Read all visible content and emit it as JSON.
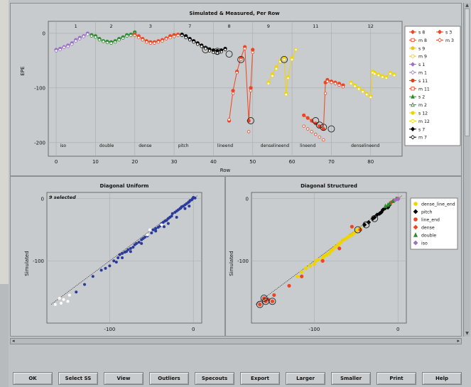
{
  "buttons": [
    "OK",
    "Select SS",
    "View",
    "Outliers",
    "Specouts",
    "Export",
    "Larger",
    "Smaller",
    "Print",
    "Help"
  ],
  "chart_data": [
    {
      "type": "line",
      "title": "Simulated & Measured, Per Row",
      "xlabel": "Row",
      "ylabel": "EPE",
      "xlim": [
        -2,
        88
      ],
      "ylim": [
        -225,
        22
      ],
      "xticks": [
        0,
        10,
        20,
        30,
        40,
        50,
        60,
        70,
        80
      ],
      "yticks": [
        0,
        -100,
        -200
      ],
      "top_labels": [
        {
          "x": 5,
          "text": "1"
        },
        {
          "x": 14,
          "text": "2"
        },
        {
          "x": 24,
          "text": "3"
        },
        {
          "x": 34,
          "text": "7"
        },
        {
          "x": 44,
          "text": "8"
        },
        {
          "x": 54,
          "text": "9"
        },
        {
          "x": 66,
          "text": "11"
        },
        {
          "x": 80,
          "text": "12"
        }
      ],
      "bottom_labels": [
        {
          "x": 1,
          "text": "iso"
        },
        {
          "x": 11,
          "text": "double"
        },
        {
          "x": 21,
          "text": "dense"
        },
        {
          "x": 31,
          "text": "pitch"
        },
        {
          "x": 41,
          "text": "lineend"
        },
        {
          "x": 52,
          "text": "denselineend"
        },
        {
          "x": 62,
          "text": "lineend"
        },
        {
          "x": 75,
          "text": "denselineend"
        }
      ],
      "legend": [
        {
          "label": "s 8",
          "color": "#ee4422",
          "shape": "diamond",
          "fill": true
        },
        {
          "label": "s 3",
          "color": "#ee4422",
          "shape": "diamond",
          "fill": true
        },
        {
          "label": "m 8",
          "color": "#ee4422",
          "shape": "square",
          "fill": false
        },
        {
          "label": "m 3",
          "color": "#ee4422",
          "shape": "diamond",
          "fill": false
        },
        {
          "label": "s 9",
          "color": "#f0c800",
          "shape": "circle",
          "fill": true
        },
        {
          "label": "m 9",
          "color": "#f0c800",
          "shape": "circle",
          "fill": false
        },
        {
          "label": "s 1",
          "color": "#9a70c8",
          "shape": "diamond",
          "fill": true
        },
        {
          "label": "m 1",
          "color": "#9a70c8",
          "shape": "diamond",
          "fill": false
        },
        {
          "label": "s 11",
          "color": "#e83a20",
          "shape": "circle",
          "fill": true
        },
        {
          "label": "m 11",
          "color": "#e83a20",
          "shape": "square",
          "fill": false
        },
        {
          "label": "s 2",
          "color": "#2e8a2e",
          "shape": "triangle",
          "fill": true
        },
        {
          "label": "m 2",
          "color": "#2e8a2e",
          "shape": "triangle",
          "fill": false
        },
        {
          "label": "s 12",
          "color": "#f0d400",
          "shape": "circle",
          "fill": true
        },
        {
          "label": "m 12",
          "color": "#f0d400",
          "shape": "circle",
          "fill": false
        },
        {
          "label": "s 7",
          "color": "#000000",
          "shape": "diamond",
          "fill": true
        },
        {
          "label": "m 7",
          "color": "#000000",
          "shape": "diamond",
          "fill": false
        }
      ],
      "series": [
        {
          "name": "iso",
          "color": "#9a70c8",
          "x": [
            0,
            1,
            2,
            3,
            4,
            5,
            6,
            7,
            8
          ],
          "simulated": [
            -30,
            -28,
            -25,
            -22,
            -18,
            -12,
            -8,
            -5,
            0
          ],
          "measured": [
            -32,
            -30,
            -26,
            -24,
            -20,
            -14,
            -10,
            -6,
            -2
          ]
        },
        {
          "name": "double",
          "color": "#2e8a2e",
          "x": [
            9,
            10,
            11,
            12,
            13,
            14,
            15,
            16,
            17,
            18,
            19,
            20
          ],
          "simulated": [
            -3,
            -5,
            -10,
            -14,
            -15,
            -16,
            -14,
            -10,
            -7,
            -3,
            -2,
            2
          ],
          "measured": [
            -5,
            -7,
            -12,
            -15,
            -17,
            -18,
            -16,
            -12,
            -9,
            -5,
            -4,
            0
          ]
        },
        {
          "name": "dense",
          "color": "#ee4422",
          "x": [
            20,
            21,
            22,
            23,
            24,
            25,
            26,
            27,
            28,
            29,
            30,
            31
          ],
          "simulated": [
            -2,
            -5,
            -10,
            -14,
            -16,
            -16,
            -14,
            -12,
            -9,
            -5,
            -3,
            -2
          ],
          "measured": [
            -4,
            -8,
            -12,
            -16,
            -18,
            -18,
            -16,
            -14,
            -10,
            -8,
            -6,
            -4
          ]
        },
        {
          "name": "pitch",
          "color": "#000000",
          "x": [
            32,
            33,
            34,
            35,
            36,
            37,
            38,
            39,
            40,
            41,
            42,
            43
          ],
          "simulated": [
            -2,
            -5,
            -10,
            -14,
            -18,
            -22,
            -26,
            -29,
            -31,
            -32,
            -31,
            -28
          ],
          "measured": [
            -4,
            -8,
            -12,
            -16,
            -20,
            -24,
            -28,
            -32,
            -35,
            -36,
            -34,
            -30
          ]
        },
        {
          "name": "lineend",
          "color": "#ee4422",
          "x": [
            44,
            45,
            46,
            47,
            48,
            49,
            49.5,
            50
          ],
          "simulated": [
            -160,
            -105,
            -70,
            -45,
            -25,
            -160,
            -100,
            -30
          ],
          "measured": [
            -158,
            -110,
            -72,
            -48,
            -28,
            -180,
            -105,
            -35
          ]
        },
        {
          "name": "denselineend",
          "color": "#f0d400",
          "x": [
            54,
            55,
            56,
            57,
            58,
            58.5,
            59,
            60,
            61
          ],
          "simulated": [
            -90,
            -75,
            -62,
            -50,
            -45,
            -110,
            -80,
            -45,
            -30
          ],
          "measured": [
            -92,
            -78,
            -65,
            -52,
            -48,
            -112,
            -82,
            -48,
            -30
          ]
        },
        {
          "name": "lineend",
          "color": "#ee4422",
          "x": [
            63,
            64,
            65,
            66,
            67,
            68,
            68.5,
            69,
            70,
            71,
            72,
            73
          ],
          "simulated": [
            -150,
            -155,
            -160,
            -165,
            -170,
            -175,
            -90,
            -85,
            -88,
            -90,
            -92,
            -95
          ],
          "measured": [
            -170,
            -175,
            -180,
            -185,
            -190,
            -195,
            -110,
            -88,
            -90,
            -92,
            -95,
            -98
          ]
        },
        {
          "name": "denselineend",
          "color": "#f0d400",
          "x": [
            75,
            76,
            77,
            78,
            79,
            80,
            80.5,
            81,
            82,
            83,
            84,
            85,
            86
          ],
          "simulated": [
            -90,
            -95,
            -100,
            -105,
            -110,
            -115,
            -70,
            -72,
            -75,
            -78,
            -80,
            -72,
            -75
          ],
          "measured": [
            -92,
            -97,
            -102,
            -107,
            -112,
            -117,
            -72,
            -74,
            -77,
            -80,
            -82,
            -74,
            -77
          ]
        }
      ]
    },
    {
      "type": "scatter",
      "title": "Diagonal Uniform",
      "annotation": "9 selected",
      "ylabel": "Simulated",
      "xlabel": "",
      "xlim": [
        -175,
        10
      ],
      "ylim": [
        -200,
        10
      ],
      "xticks": [
        -100,
        0
      ],
      "yticks": [
        0,
        -100
      ],
      "points_selected": [
        [
          -165,
          -170
        ],
        [
          -160,
          -160
        ],
        [
          -158,
          -168
        ],
        [
          -155,
          -162
        ],
        [
          -150,
          -165
        ],
        [
          -148,
          -155
        ],
        [
          -55,
          -58
        ],
        [
          -52,
          -50
        ],
        [
          -38,
          -42
        ]
      ],
      "points": [
        [
          -140,
          -150
        ],
        [
          -130,
          -138
        ],
        [
          -120,
          -125
        ],
        [
          -110,
          -115
        ],
        [
          -105,
          -112
        ],
        [
          -100,
          -108
        ],
        [
          -95,
          -100
        ],
        [
          -90,
          -95
        ],
        [
          -88,
          -90
        ],
        [
          -85,
          -88
        ],
        [
          -82,
          -86
        ],
        [
          -80,
          -85
        ],
        [
          -78,
          -82
        ],
        [
          -75,
          -80
        ],
        [
          -72,
          -78
        ],
        [
          -70,
          -74
        ],
        [
          -68,
          -72
        ],
        [
          -65,
          -70
        ],
        [
          -62,
          -66
        ],
        [
          -60,
          -64
        ],
        [
          -58,
          -62
        ],
        [
          -55,
          -60
        ],
        [
          -50,
          -55
        ],
        [
          -48,
          -50
        ],
        [
          -45,
          -48
        ],
        [
          -42,
          -46
        ],
        [
          -40,
          -44
        ],
        [
          -38,
          -40
        ],
        [
          -36,
          -38
        ],
        [
          -34,
          -36
        ],
        [
          -32,
          -35
        ],
        [
          -30,
          -32
        ],
        [
          -28,
          -30
        ],
        [
          -26,
          -28
        ],
        [
          -25,
          -24
        ],
        [
          -22,
          -22
        ],
        [
          -20,
          -20
        ],
        [
          -18,
          -18
        ],
        [
          -16,
          -16
        ],
        [
          -15,
          -15
        ],
        [
          -14,
          -13
        ],
        [
          -12,
          -12
        ],
        [
          -10,
          -10
        ],
        [
          -8,
          -8
        ],
        [
          -6,
          -6
        ],
        [
          -5,
          -5
        ],
        [
          -4,
          -3
        ],
        [
          -2,
          -2
        ],
        [
          -1,
          0
        ],
        [
          0,
          2
        ],
        [
          2,
          1
        ],
        [
          -30,
          -40
        ],
        [
          -35,
          -45
        ],
        [
          -45,
          -52
        ],
        [
          -62,
          -72
        ],
        [
          -75,
          -85
        ],
        [
          -92,
          -102
        ],
        [
          -85,
          -95
        ],
        [
          -20,
          -30
        ],
        [
          -10,
          -16
        ],
        [
          -5,
          -12
        ]
      ]
    },
    {
      "type": "scatter",
      "title": "Diagonal Structured",
      "ylabel": "Simulated",
      "xlabel": "",
      "xlim": [
        -175,
        10
      ],
      "ylim": [
        -200,
        10
      ],
      "xticks": [
        -100,
        0
      ],
      "yticks": [
        0,
        -100
      ],
      "legend": [
        {
          "label": "dense_line_end",
          "color": "#f0d400",
          "shape": "circle"
        },
        {
          "label": "pitch",
          "color": "#000000",
          "shape": "diamond"
        },
        {
          "label": "line_end",
          "color": "#ee4422",
          "shape": "circle"
        },
        {
          "label": "dense",
          "color": "#ee4422",
          "shape": "diamond"
        },
        {
          "label": "double",
          "color": "#2e8a2e",
          "shape": "triangle"
        },
        {
          "label": "iso",
          "color": "#9a70c8",
          "shape": "diamond"
        }
      ],
      "groups": [
        {
          "name": "dense_line_end",
          "color": "#f0d400",
          "points": [
            [
              -120,
              -125
            ],
            [
              -115,
              -118
            ],
            [
              -110,
              -112
            ],
            [
              -105,
              -108
            ],
            [
              -100,
              -105
            ],
            [
              -98,
              -100
            ],
            [
              -95,
              -98
            ],
            [
              -90,
              -95
            ],
            [
              -88,
              -92
            ],
            [
              -85,
              -90
            ],
            [
              -82,
              -88
            ],
            [
              -80,
              -84
            ],
            [
              -78,
              -82
            ],
            [
              -75,
              -78
            ],
            [
              -72,
              -75
            ],
            [
              -70,
              -72
            ],
            [
              -68,
              -70
            ],
            [
              -65,
              -66
            ],
            [
              -62,
              -64
            ],
            [
              -60,
              -62
            ],
            [
              -58,
              -60
            ],
            [
              -55,
              -58
            ],
            [
              -52,
              -55
            ],
            [
              -50,
              -52
            ],
            [
              -48,
              -50
            ],
            [
              -45,
              -48
            ]
          ]
        },
        {
          "name": "pitch",
          "color": "#000000",
          "points": [
            [
              -40,
              -42
            ],
            [
              -35,
              -38
            ],
            [
              -30,
              -32
            ],
            [
              -28,
              -30
            ],
            [
              -25,
              -26
            ],
            [
              -22,
              -24
            ],
            [
              -20,
              -22
            ],
            [
              -18,
              -18
            ],
            [
              -15,
              -15
            ],
            [
              -12,
              -14
            ],
            [
              -10,
              -10
            ]
          ]
        },
        {
          "name": "line_end",
          "color": "#ee4422",
          "points": [
            [
              -165,
              -170
            ],
            [
              -160,
              -160
            ],
            [
              -158,
              -165
            ],
            [
              -155,
              -162
            ],
            [
              -150,
              -165
            ],
            [
              -148,
              -155
            ],
            [
              -55,
              -45
            ],
            [
              -45,
              -50
            ],
            [
              -130,
              -140
            ],
            [
              -115,
              -125
            ],
            [
              -90,
              -100
            ],
            [
              -70,
              -80
            ]
          ]
        },
        {
          "name": "dense",
          "color": "#ee4422",
          "points": [
            [
              -8,
              -6
            ],
            [
              -5,
              -3
            ],
            [
              -3,
              -2
            ],
            [
              0,
              0
            ]
          ]
        },
        {
          "name": "double",
          "color": "#2e8a2e",
          "points": [
            [
              -15,
              -12
            ],
            [
              -12,
              -10
            ],
            [
              -10,
              -8
            ],
            [
              -6,
              -4
            ],
            [
              -2,
              0
            ]
          ]
        },
        {
          "name": "iso",
          "color": "#9a70c8",
          "points": [
            [
              -3,
              -2
            ],
            [
              0,
              -1
            ]
          ]
        }
      ],
      "circled": [
        [
          -165,
          -170
        ],
        [
          -160,
          -160
        ],
        [
          -158,
          -165
        ],
        [
          -150,
          -165
        ],
        [
          -48,
          -50
        ],
        [
          -38,
          -42
        ],
        [
          -28,
          -32
        ]
      ]
    }
  ]
}
